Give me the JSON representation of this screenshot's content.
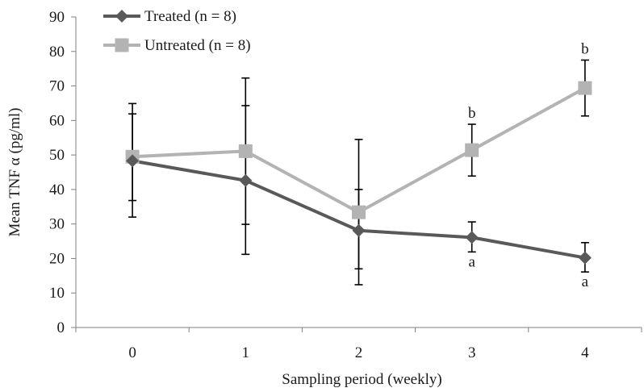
{
  "chart_data": {
    "type": "line",
    "title": "",
    "xlabel": "Sampling period (weekly)",
    "ylabel": "Mean TNF α (pg/ml)",
    "categories": [
      "0",
      "1",
      "2",
      "3",
      "4"
    ],
    "ylim": [
      0,
      90
    ],
    "yticks": [
      "0",
      "10",
      "20",
      "30",
      "40",
      "50",
      "60",
      "70",
      "80",
      "90"
    ],
    "grid": false,
    "legend_position": "top-left",
    "series": [
      {
        "name": "Treated (n = 8)",
        "color": "#595959",
        "marker": "diamond",
        "values": [
          48.3,
          42.6,
          28.1,
          26.1,
          20.2
        ],
        "error_low": [
          32.0,
          21.2,
          12.4,
          21.9,
          16.1
        ],
        "error_high": [
          64.9,
          64.3,
          40.0,
          30.6,
          24.6
        ],
        "annotations": [
          "",
          "",
          "",
          "a",
          "a"
        ]
      },
      {
        "name": "Untreated (n = 8)",
        "color": "#b3b3b3",
        "marker": "square",
        "values": [
          49.5,
          51.1,
          33.4,
          51.4,
          69.4
        ],
        "error_low": [
          36.8,
          29.9,
          17.0,
          43.9,
          61.3
        ],
        "error_high": [
          61.9,
          72.3,
          54.5,
          58.9,
          77.5
        ],
        "annotations": [
          "",
          "",
          "",
          "b",
          "b"
        ]
      }
    ]
  }
}
